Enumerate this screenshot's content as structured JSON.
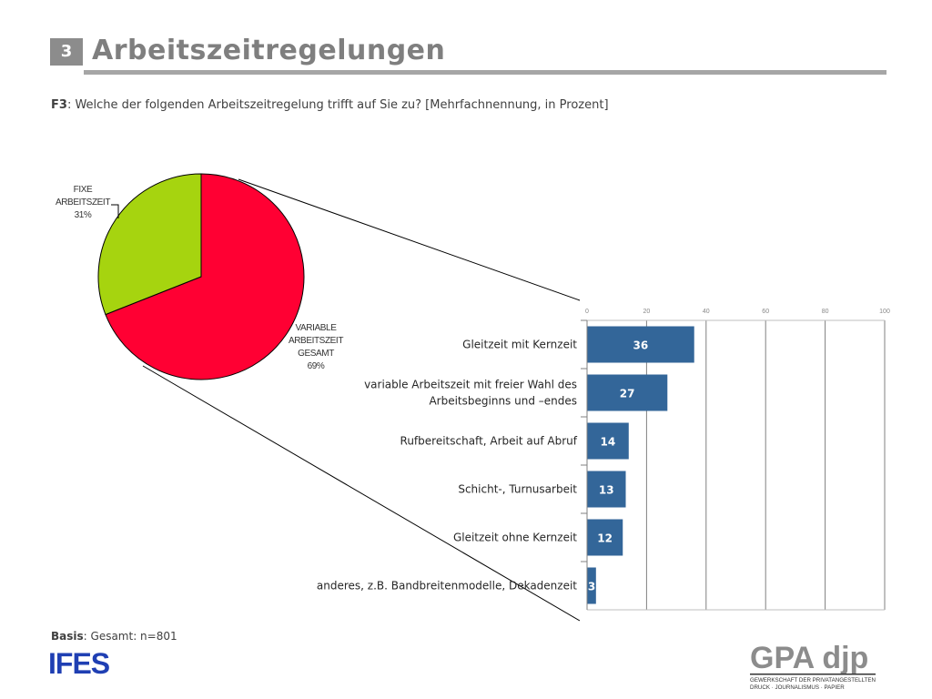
{
  "header": {
    "badge": "3",
    "title": "Arbeitszeitregelungen"
  },
  "question": {
    "code": "F3",
    "text": ": Welche der folgenden Arbeitszeitregelung trifft auf Sie zu? [Mehrfachnennung, in Prozent]"
  },
  "basis": {
    "label": "Basis",
    "text": ": Gesamt: n=801"
  },
  "logos": {
    "left": "IFES",
    "right_main": "GPA djp",
    "right_sub1": "GEWERKSCHAFT DER PRIVATANGESTELLTEN",
    "right_sub2": "DRUCK · JOURNALISMUS · PAPIER"
  },
  "colors": {
    "pie_variable": "#ff0033",
    "pie_fixed": "#a6d40f",
    "bar": "#336699",
    "grid": "#808080"
  },
  "chart_data": [
    {
      "type": "pie",
      "slices": [
        {
          "label_lines": [
            "VARIABLE",
            "ARBEITSZEIT",
            "GESAMT",
            "69%"
          ],
          "value": 69
        },
        {
          "label_lines": [
            "FIXE",
            "ARBEITSZEIT",
            "31%"
          ],
          "value": 31
        }
      ]
    },
    {
      "type": "bar",
      "orientation": "horizontal",
      "categories": [
        [
          "Gleitzeit mit Kernzeit"
        ],
        [
          "variable Arbeitszeit mit freier Wahl des",
          "Arbeitsbeginns und –endes"
        ],
        [
          "Rufbereitschaft, Arbeit auf Abruf"
        ],
        [
          "Schicht-, Turnusarbeit"
        ],
        [
          "Gleitzeit ohne Kernzeit"
        ],
        [
          "anderes, z.B. Bandbreitenmodelle, Dekadenzeit"
        ]
      ],
      "values": [
        36,
        27,
        14,
        13,
        12,
        3
      ],
      "xlim": [
        0,
        100
      ],
      "xticks": [
        "0",
        "20",
        "40",
        "60",
        "80",
        "100"
      ],
      "grid": true
    }
  ]
}
